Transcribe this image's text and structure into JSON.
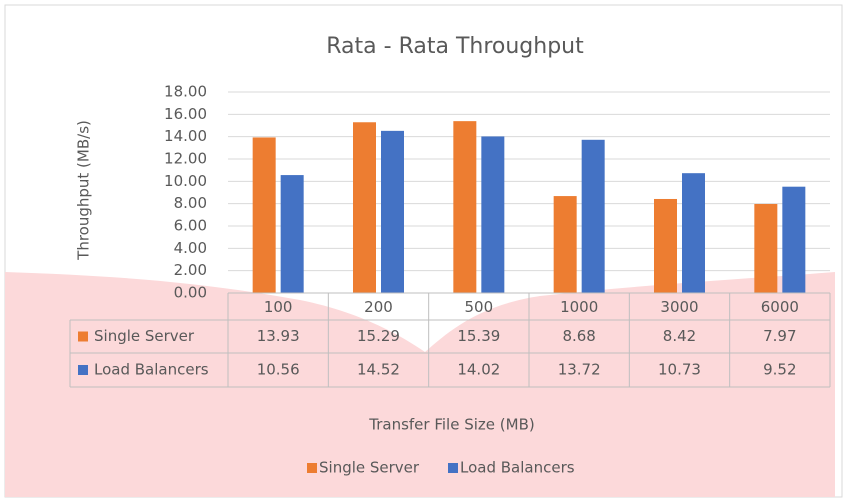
{
  "chart_data": {
    "type": "bar",
    "title": "Rata - Rata Throughput",
    "x_label": "Transfer File Size (MB)",
    "y_label": "Throughput (MB/s)",
    "categories": [
      "100",
      "200",
      "500",
      "1000",
      "3000",
      "6000"
    ],
    "series": [
      {
        "name": "Single Server",
        "color": "#ed7d31",
        "values": [
          13.93,
          15.29,
          15.39,
          8.68,
          8.42,
          7.97
        ]
      },
      {
        "name": "Load Balancers",
        "color": "#4472c4",
        "values": [
          10.56,
          14.52,
          14.02,
          13.72,
          10.73,
          9.52
        ]
      }
    ],
    "ylim": [
      0,
      18
    ],
    "yticks": [
      {
        "value": 0,
        "label": "0.00"
      },
      {
        "value": 2,
        "label": "2.00"
      },
      {
        "value": 4,
        "label": "4.00"
      },
      {
        "value": 6,
        "label": "6.00"
      },
      {
        "value": 8,
        "label": "8.00"
      },
      {
        "value": 10,
        "label": "10.00"
      },
      {
        "value": 12,
        "label": "12.00"
      },
      {
        "value": 14,
        "label": "14.00"
      },
      {
        "value": 16,
        "label": "16.00"
      },
      {
        "value": 18,
        "label": "18.00"
      }
    ],
    "grid": true,
    "legend": "bottom",
    "data_table": true
  }
}
